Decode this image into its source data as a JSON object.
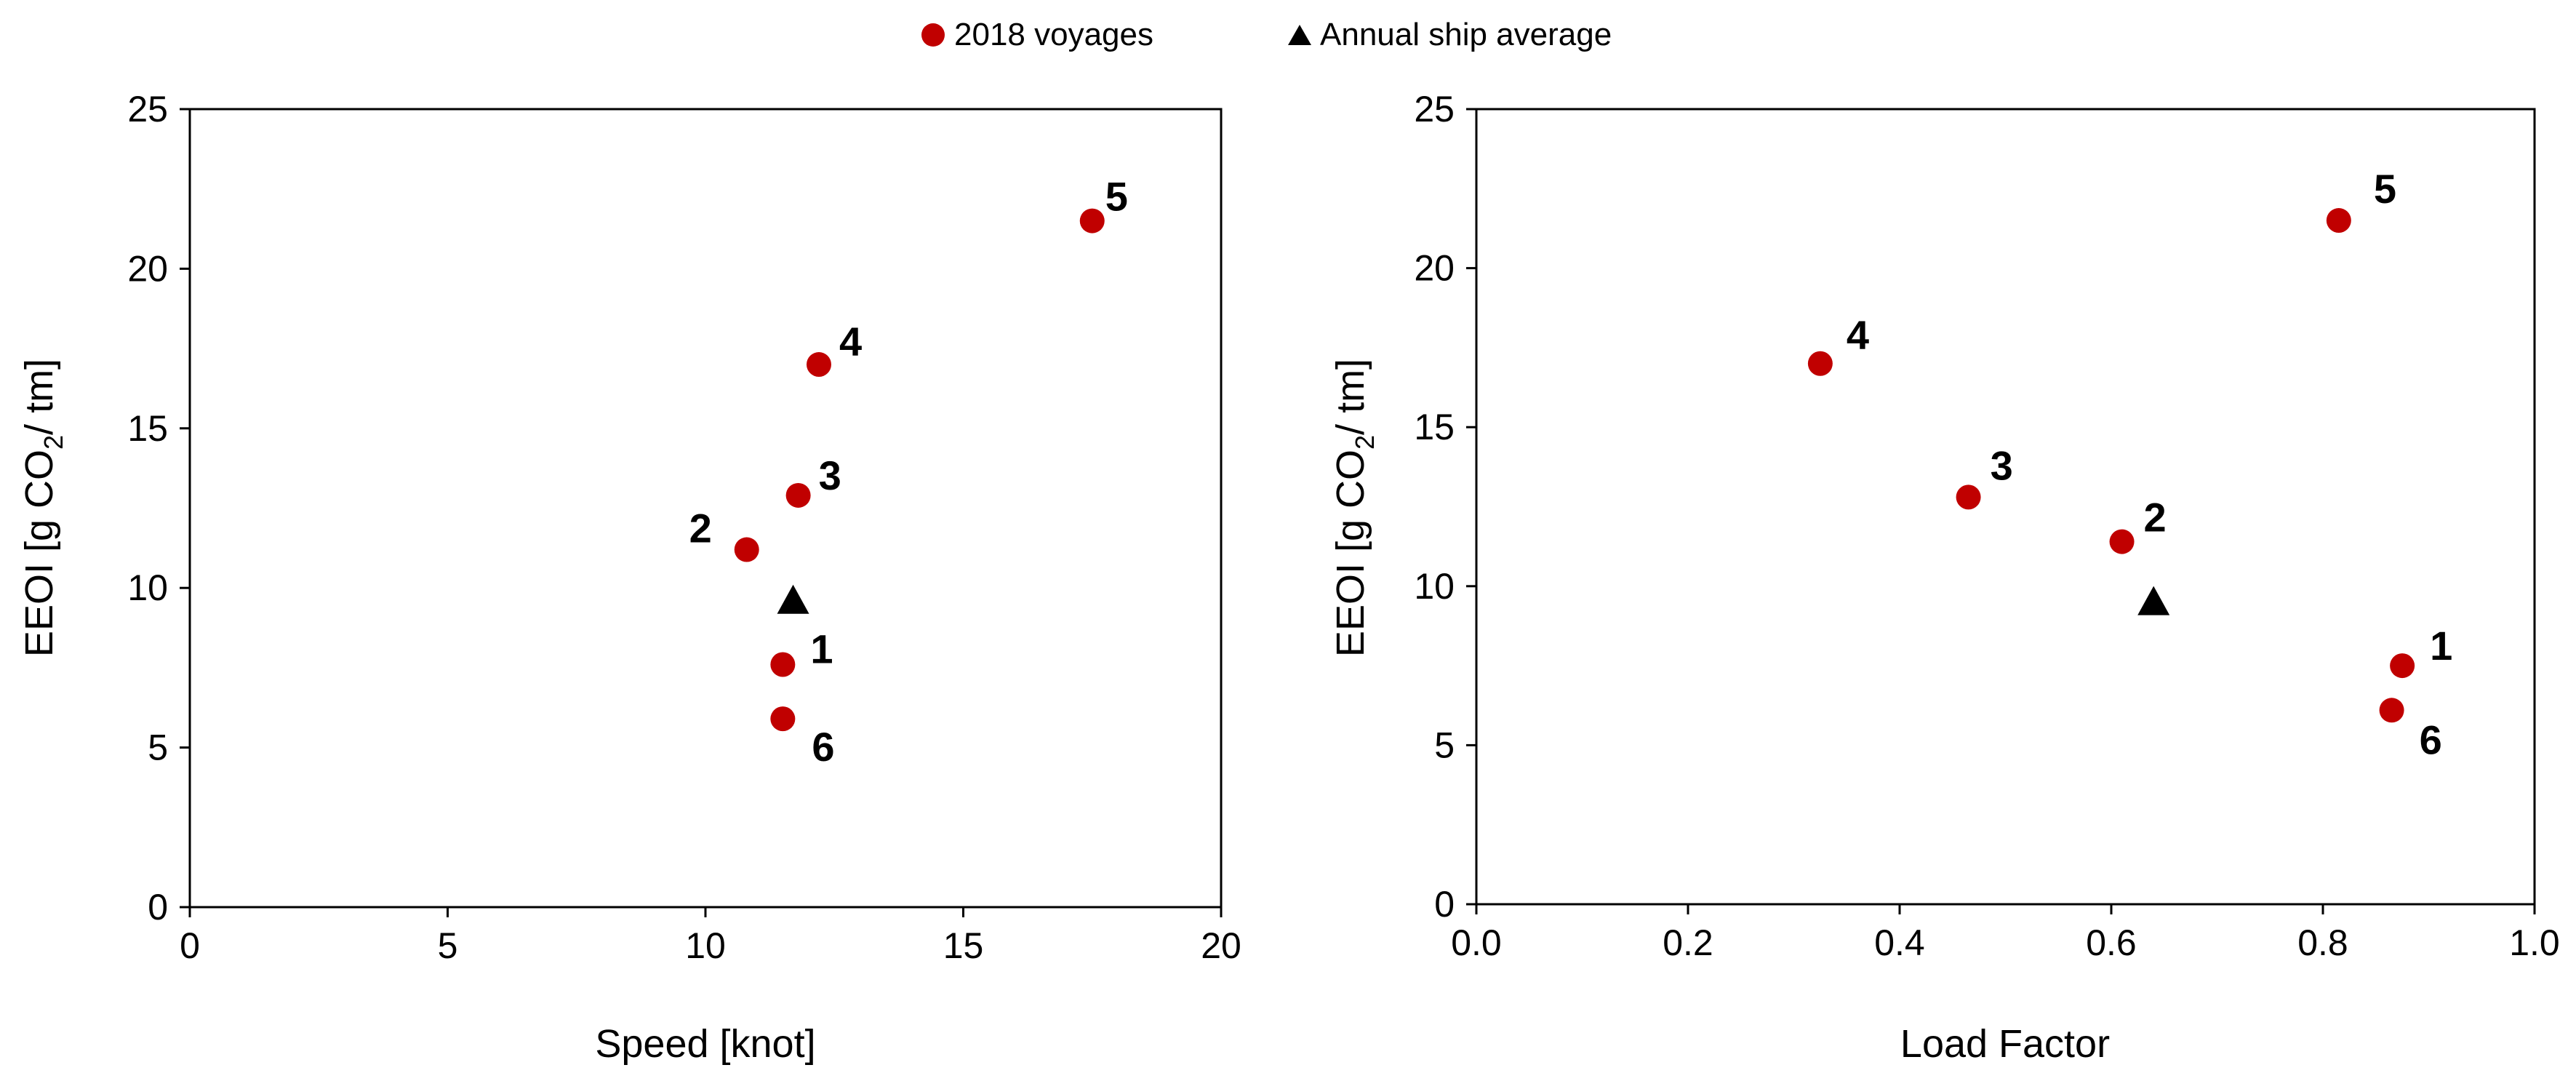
{
  "legend": {
    "series_1": "2018 voyages",
    "series_2": "Annual ship average"
  },
  "colors": {
    "voyage_marker": "#c00000",
    "average_marker": "#000000"
  },
  "chart_data": [
    {
      "type": "scatter",
      "xlabel": "Speed [knot]",
      "ylabel_parts": [
        "EEOI [g CO",
        "2",
        "/ tm]"
      ],
      "xlim": [
        0,
        20
      ],
      "ylim": [
        0,
        25
      ],
      "x_ticks": [
        "0",
        "5",
        "10",
        "15",
        "20"
      ],
      "y_ticks": [
        "0",
        "5",
        "10",
        "15",
        "20",
        "25"
      ],
      "grid": false,
      "series": [
        {
          "name": "2018 voyages",
          "marker": "circle",
          "points": [
            {
              "label": "1",
              "x": 11.5,
              "y": 7.6
            },
            {
              "label": "2",
              "x": 10.8,
              "y": 11.2
            },
            {
              "label": "3",
              "x": 11.8,
              "y": 12.9
            },
            {
              "label": "4",
              "x": 12.2,
              "y": 17.0
            },
            {
              "label": "5",
              "x": 17.5,
              "y": 21.5
            },
            {
              "label": "6",
              "x": 11.5,
              "y": 5.9
            }
          ]
        },
        {
          "name": "Annual ship average",
          "marker": "triangle",
          "points": [
            {
              "label": "",
              "x": 11.7,
              "y": 9.6
            }
          ]
        }
      ]
    },
    {
      "type": "scatter",
      "xlabel": "Load Factor",
      "ylabel_parts": [
        "EEOI [g CO",
        "2",
        "/ tm]"
      ],
      "xlim": [
        0.0,
        1.0
      ],
      "ylim": [
        0,
        25
      ],
      "x_ticks": [
        "0.0",
        "0.2",
        "0.4",
        "0.6",
        "0.8",
        "1.0"
      ],
      "y_ticks": [
        "0",
        "5",
        "10",
        "15",
        "20",
        "25"
      ],
      "grid": false,
      "series": [
        {
          "name": "2018 voyages",
          "marker": "circle",
          "points": [
            {
              "label": "1",
              "x": 0.875,
              "y": 7.5
            },
            {
              "label": "2",
              "x": 0.61,
              "y": 11.4
            },
            {
              "label": "3",
              "x": 0.465,
              "y": 12.8
            },
            {
              "label": "4",
              "x": 0.325,
              "y": 17.0
            },
            {
              "label": "5",
              "x": 0.815,
              "y": 21.5
            },
            {
              "label": "6",
              "x": 0.865,
              "y": 6.1
            }
          ]
        },
        {
          "name": "Annual ship average",
          "marker": "triangle",
          "points": [
            {
              "label": "",
              "x": 0.64,
              "y": 9.5
            }
          ]
        }
      ]
    }
  ]
}
